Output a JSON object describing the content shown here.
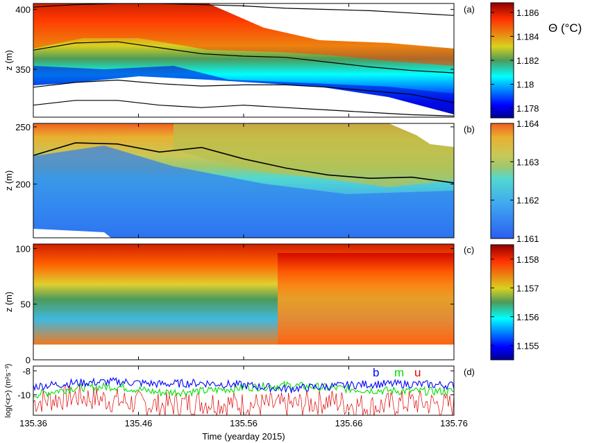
{
  "chart_data": [
    {
      "panel": "(a)",
      "type": "heatmap",
      "ylabel": "z (m)",
      "yticks": [
        350,
        400
      ],
      "ylim": [
        310,
        405
      ],
      "colorbar": {
        "ticks": [
          "1.178",
          "1.18",
          "1.182",
          "1.184",
          "1.186"
        ],
        "range": [
          1.1772,
          1.1868
        ],
        "label": "Θ (°C)"
      },
      "isotherm_contours": [
        {
          "x": [
            135.36,
            135.4,
            135.44,
            135.48,
            135.52,
            135.56,
            135.6,
            135.64,
            135.68,
            135.72,
            135.76
          ],
          "y": [
            402,
            404,
            405,
            405,
            404,
            403,
            401,
            400,
            399,
            397,
            395
          ]
        },
        {
          "x": [
            135.36,
            135.4,
            135.44,
            135.48,
            135.52,
            135.56,
            135.6,
            135.64,
            135.68,
            135.72,
            135.76
          ],
          "y": [
            366,
            372,
            373,
            368,
            363,
            361,
            360,
            356,
            352,
            349,
            347
          ]
        },
        {
          "x": [
            135.36,
            135.4,
            135.44,
            135.48,
            135.52,
            135.56,
            135.6,
            135.64,
            135.68,
            135.72,
            135.76
          ],
          "y": [
            335,
            339,
            341,
            338,
            336,
            337,
            337,
            335,
            332,
            329,
            322
          ]
        },
        {
          "x": [
            135.36,
            135.4,
            135.44,
            135.48,
            135.52,
            135.56,
            135.6,
            135.64,
            135.68,
            135.72,
            135.76
          ],
          "y": [
            320,
            324,
            324,
            320,
            318,
            320,
            318,
            316,
            314,
            312,
            311
          ]
        }
      ]
    },
    {
      "panel": "(b)",
      "type": "heatmap",
      "ylabel": "z (m)",
      "yticks": [
        200,
        250
      ],
      "ylim": [
        153,
        253
      ],
      "colorbar": {
        "ticks": [
          "1.161",
          "1.162",
          "1.163",
          "1.164"
        ],
        "range": [
          1.161,
          1.164
        ]
      },
      "isotherm_contours": [
        {
          "x": [
            135.36,
            135.4,
            135.44,
            135.48,
            135.52,
            135.56,
            135.6,
            135.64,
            135.68,
            135.72,
            135.76
          ],
          "y": [
            225,
            236,
            235,
            228,
            232,
            222,
            214,
            208,
            205,
            206,
            201
          ]
        }
      ]
    },
    {
      "panel": "(c)",
      "type": "heatmap",
      "ylabel": "z (m)",
      "yticks": [
        0,
        50,
        100
      ],
      "ylim": [
        0,
        104
      ],
      "colorbar": {
        "ticks": [
          "1.155",
          "1.156",
          "1.157",
          "1.158"
        ],
        "range": [
          1.1545,
          1.1585
        ]
      }
    },
    {
      "panel": "(d)",
      "type": "line",
      "ylabel": "log(<ε>) (m²s⁻³)",
      "xlabel": "Time (yearday 2015)",
      "xticks": [
        "135.36",
        "135.46",
        "135.56",
        "135.66",
        "135.76"
      ],
      "xlim": [
        135.36,
        135.76
      ],
      "yticks": [
        -8,
        -10
      ],
      "ylim": [
        -11.7,
        -7.6
      ],
      "series": [
        {
          "name": "b",
          "color": "#0000ff",
          "x": [
            135.36,
            135.4,
            135.44,
            135.48,
            135.52,
            135.56,
            135.6,
            135.64,
            135.68,
            135.72,
            135.76
          ],
          "values": [
            -9.3,
            -9.0,
            -8.9,
            -9.1,
            -9.0,
            -9.2,
            -9.5,
            -9.3,
            -9.1,
            -9.1,
            -9.2
          ]
        },
        {
          "name": "m",
          "color": "#00dd00",
          "x": [
            135.36,
            135.4,
            135.44,
            135.48,
            135.52,
            135.56,
            135.6,
            135.64,
            135.68,
            135.72,
            135.76
          ],
          "values": [
            -10.0,
            -9.4,
            -9.3,
            -9.8,
            -9.7,
            -9.4,
            -9.2,
            -9.4,
            -9.6,
            -9.7,
            -9.7
          ]
        },
        {
          "name": "u",
          "color": "#dd0000",
          "x": [
            135.36,
            135.4,
            135.44,
            135.48,
            135.52,
            135.56,
            135.6,
            135.64,
            135.68,
            135.72,
            135.76
          ],
          "values": [
            -10.6,
            -10.1,
            -10.5,
            -10.9,
            -10.6,
            -10.8,
            -10.9,
            -10.5,
            -11.0,
            -10.6,
            -10.9
          ]
        }
      ]
    }
  ]
}
